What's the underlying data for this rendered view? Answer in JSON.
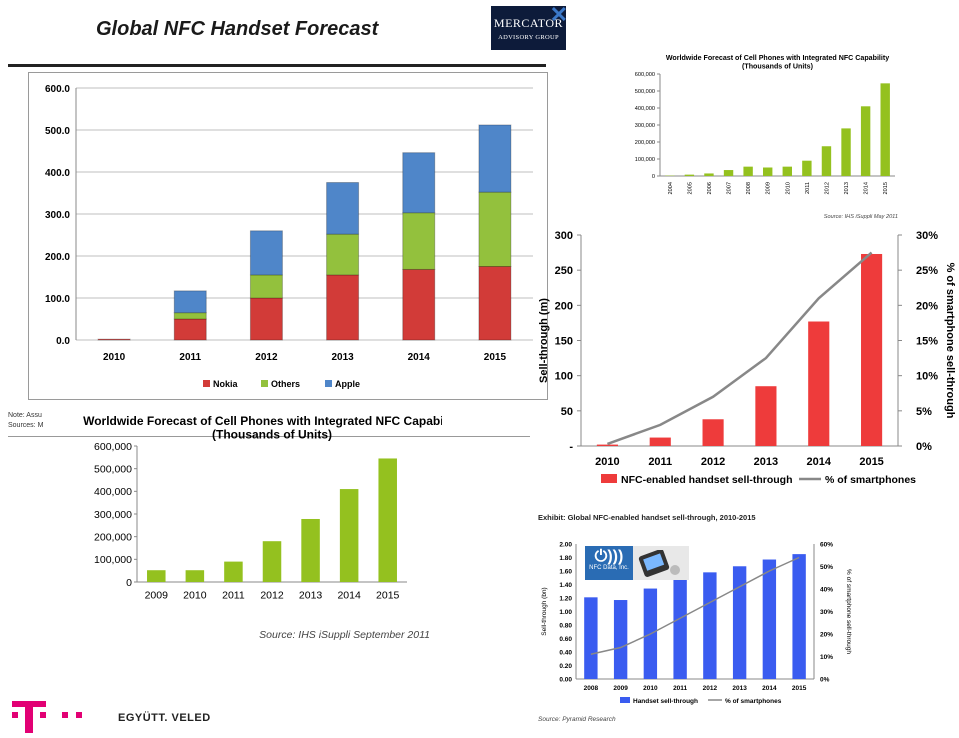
{
  "page": {
    "title": "Global NFC Handset Forecast",
    "logo_line1": "MERCATOR",
    "logo_line2": "ADVISORY GROUP",
    "notes_line1": "Note: Assu",
    "notes_line2": "Sources: M",
    "footer": "EGYÜTT. VELED",
    "pyramid_exhibit": "Exhibit: Global NFC-enabled handset sell-through, 2010-2015",
    "pyramid_source": "Source: Pyramid Research",
    "nfc_badge": "NFC Data, Inc."
  },
  "colors": {
    "nokia": "#d23b38",
    "others": "#93c13d",
    "apple": "#4f86c9",
    "ihs_green": "#94c11f",
    "sell_red": "#ee3b3b",
    "line_gray": "#888888",
    "pyr_blue": "#3a5cf0",
    "magenta": "#e20074"
  },
  "chart_data": [
    {
      "id": "mercator",
      "type": "bar",
      "stacked": true,
      "categories": [
        "2010",
        "2011",
        "2012",
        "2013",
        "2014",
        "2015"
      ],
      "series": [
        {
          "name": "Nokia",
          "values": [
            2,
            50,
            100,
            155,
            168,
            175
          ]
        },
        {
          "name": "Others",
          "values": [
            0,
            15,
            55,
            97,
            135,
            177
          ]
        },
        {
          "name": "Apple",
          "values": [
            0,
            52,
            105,
            123,
            143,
            160
          ]
        }
      ],
      "yticks": [
        "0.0",
        "100.0",
        "200.0",
        "300.0",
        "400.0",
        "500.0",
        "600.0"
      ],
      "ylim": [
        0,
        600
      ],
      "grid": true,
      "legend": "bottom"
    },
    {
      "id": "ihs_sept",
      "type": "bar",
      "title": "Worldwide Forecast of Cell Phones with Integrated NFC Capability",
      "subtitle": "(Thousands of Units)",
      "categories": [
        "2009",
        "2010",
        "2011",
        "2012",
        "2013",
        "2014",
        "2015"
      ],
      "values": [
        52000,
        52000,
        90000,
        180000,
        278000,
        410000,
        545000
      ],
      "yticks": [
        "0",
        "100,000",
        "200,000",
        "300,000",
        "400,000",
        "500,000",
        "600,000"
      ],
      "ylim": [
        0,
        600000
      ],
      "source": "Source: IHS iSuppli September 2011"
    },
    {
      "id": "ihs_may",
      "type": "bar",
      "title": "Worldwide Forecast of Cell Phones with Integrated NFC Capability",
      "subtitle": "(Thousands of Units)",
      "categories": [
        "2004",
        "2005",
        "2006",
        "2007",
        "2008",
        "2009",
        "2010",
        "2011",
        "2012",
        "2013",
        "2014",
        "2015"
      ],
      "values": [
        2000,
        8000,
        15000,
        35000,
        55000,
        50000,
        55000,
        90000,
        175000,
        280000,
        410000,
        545000
      ],
      "yticks": [
        "0",
        "100,000",
        "200,000",
        "300,000",
        "400,000",
        "500,000",
        "600,000"
      ],
      "ylim": [
        0,
        600000
      ],
      "source": "Source: IHS iSuppli May 2011"
    },
    {
      "id": "sell_through",
      "type": "bar",
      "categories": [
        "2010",
        "2011",
        "2012",
        "2013",
        "2014",
        "2015"
      ],
      "series": [
        {
          "name": "NFC-enabled handset sell-through",
          "values": [
            2,
            12,
            38,
            85,
            177,
            273
          ],
          "axis": "left"
        },
        {
          "name": "% of smartphones",
          "values": [
            0.3,
            3,
            7,
            12.5,
            21,
            27.5
          ],
          "axis": "right",
          "type": "line"
        }
      ],
      "yticks": [
        "-",
        "50",
        "100",
        "150",
        "200",
        "250",
        "300"
      ],
      "ylim": [
        0,
        300
      ],
      "y2ticks": [
        "0%",
        "5%",
        "10%",
        "15%",
        "20%",
        "25%",
        "30%"
      ],
      "y2lim": [
        0,
        30
      ],
      "ylabel": "Sell-through (m)",
      "y2label": "% of smartphone sell-through",
      "legend": "bottom"
    },
    {
      "id": "pyramid",
      "type": "bar",
      "categories": [
        "2008",
        "2009",
        "2010",
        "2011",
        "2012",
        "2013",
        "2014",
        "2015"
      ],
      "series": [
        {
          "name": "Handset sell-through",
          "values": [
            1.21,
            1.17,
            1.34,
            1.47,
            1.58,
            1.67,
            1.77,
            1.85
          ],
          "axis": "left"
        },
        {
          "name": "% of smartphones",
          "values": [
            11,
            14,
            20,
            27,
            34,
            41,
            48,
            54
          ],
          "axis": "right",
          "type": "line"
        }
      ],
      "yticks": [
        "0.00",
        "0.20",
        "0.40",
        "0.60",
        "0.80",
        "1.00",
        "1.20",
        "1.40",
        "1.60",
        "1.80",
        "2.00"
      ],
      "ylim": [
        0,
        2
      ],
      "y2ticks": [
        "0%",
        "10%",
        "20%",
        "30%",
        "40%",
        "50%",
        "60%"
      ],
      "y2lim": [
        0,
        60
      ],
      "ylabel": "Sell-through (bn)",
      "y2label": "% of smartphone sell-through",
      "legend": "bottom"
    }
  ]
}
